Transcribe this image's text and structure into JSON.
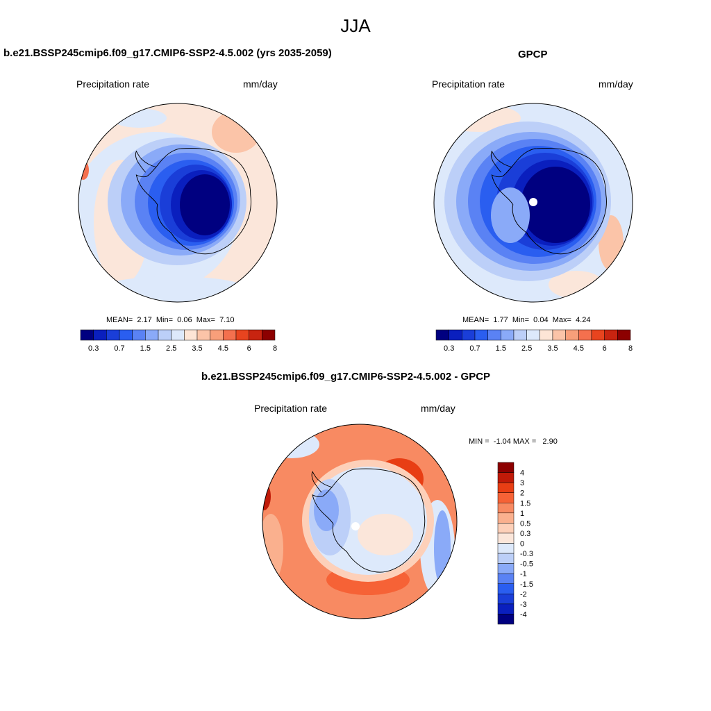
{
  "figure": {
    "title": "JJA"
  },
  "panels": {
    "model": {
      "title": "b.e21.BSSP245cmip6.f09_g17.CMIP6-SSP2-4.5.002 (yrs 2035-2059)",
      "left_label": "Precipitation rate",
      "right_label": "mm/day",
      "stats": {
        "mean_label": "MEAN=",
        "mean": "2.17",
        "min_label": "Min=",
        "min": "0.06",
        "max_label": "Max=",
        "max": "7.10"
      }
    },
    "obs": {
      "title": "GPCP",
      "left_label": "Precipitation rate",
      "right_label": "mm/day",
      "stats": {
        "mean_label": "MEAN=",
        "mean": "1.77",
        "min_label": "Min=",
        "min": "0.04",
        "max_label": "Max=",
        "max": "4.24"
      }
    },
    "diff": {
      "title": "b.e21.BSSP245cmip6.f09_g17.CMIP6-SSP2-4.5.002 - GPCP",
      "left_label": "Precipitation rate",
      "right_label": "mm/day",
      "stats": {
        "min_label": "MIN =",
        "min": "-1.04",
        "max_label": "MAX =",
        "max": "2.90"
      }
    }
  },
  "colorbars": {
    "precip": {
      "colors": [
        "#000080",
        "#0a1fbe",
        "#1a3ed8",
        "#2a5ef0",
        "#5a82f4",
        "#8aaaf8",
        "#bccff8",
        "#dde9fb",
        "#fde5d6",
        "#fbc4a8",
        "#f89f7a",
        "#f4704e",
        "#e8441f",
        "#c82410",
        "#8c0000"
      ],
      "tick_labels": [
        "0.3",
        "0.7",
        "1.5",
        "2.5",
        "3.5",
        "4.5",
        "6",
        "8"
      ]
    },
    "diff": {
      "colors": [
        "#8c0000",
        "#c01a08",
        "#e83e14",
        "#f66236",
        "#f88a62",
        "#fab08e",
        "#fdd0b9",
        "#fbe6da",
        "#dde9fb",
        "#bccff8",
        "#8aaaf8",
        "#5a82f4",
        "#2a5ef0",
        "#1a3ed8",
        "#0a1fbe",
        "#000080"
      ],
      "tick_labels": [
        "4",
        "3",
        "2",
        "1.5",
        "1",
        "0.5",
        "0.3",
        "0",
        "-0.3",
        "-0.5",
        "-1",
        "-1.5",
        "-2",
        "-3",
        "-4"
      ]
    }
  }
}
